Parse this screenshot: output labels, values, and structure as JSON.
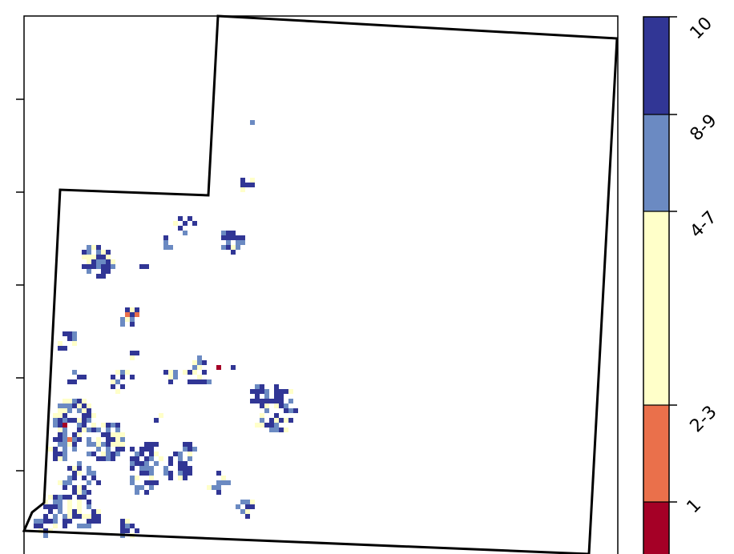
{
  "map": {
    "title": "",
    "categories": [
      "1",
      "2-3",
      "4-7",
      "8-9",
      "10"
    ],
    "category_colors": [
      "#a50026",
      "#ea704b",
      "#ffffc9",
      "#6b8ac2",
      "#313695"
    ],
    "tick_marks_left": 5,
    "boundary_color": "#000000",
    "background": "#ffffff"
  },
  "colorbar": {
    "labels": [
      "1",
      "2-3",
      "4-7",
      "8-9",
      "10"
    ],
    "label_rotation_deg": -45
  }
}
